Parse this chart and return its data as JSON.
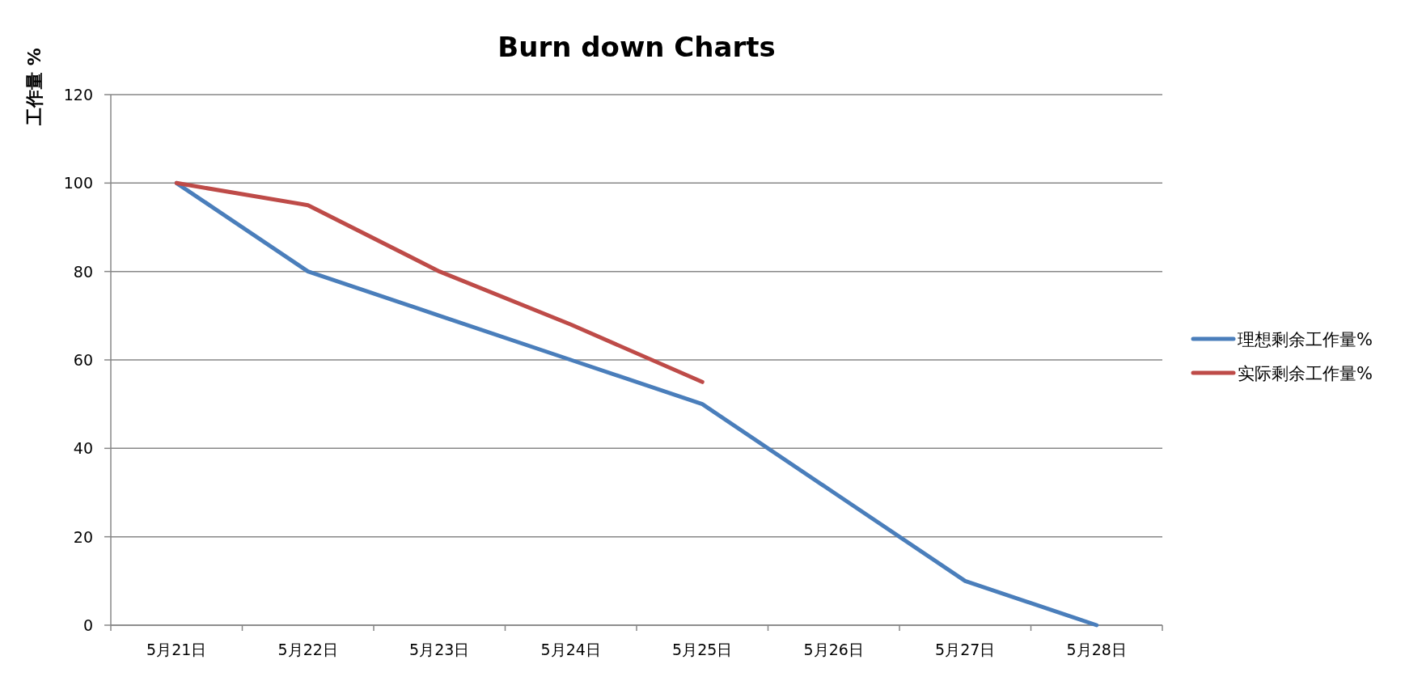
{
  "chart_data": {
    "type": "line",
    "title": "Burn down Charts",
    "ylabel": "工作量 %",
    "categories": [
      "5月21日",
      "5月22日",
      "5月23日",
      "5月24日",
      "5月25日",
      "5月26日",
      "5月27日",
      "5月28日"
    ],
    "series": [
      {
        "name": "理想剩余工作量%",
        "color": "#4a7ebb",
        "values": [
          100,
          80,
          70,
          60,
          50,
          30,
          10,
          0
        ]
      },
      {
        "name": "实际剩余工作量%",
        "color": "#be4b48",
        "values": [
          100,
          95,
          80,
          68,
          55,
          null,
          null,
          null
        ]
      }
    ],
    "ylim": [
      0,
      120
    ],
    "yticks": [
      0,
      20,
      40,
      60,
      80,
      100,
      120
    ],
    "grid": "y",
    "legend": "right",
    "marker": "none",
    "line_style": "solid"
  }
}
